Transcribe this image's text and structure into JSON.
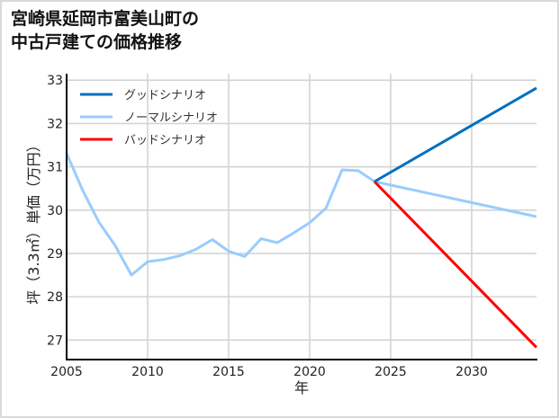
{
  "title": {
    "line1": "宮崎県延岡市富美山町の",
    "line2": "中古戸建ての価格推移"
  },
  "colors": {
    "good": "#0070c0",
    "normal": "#99ccff",
    "bad": "#ff0000",
    "grid": "#d4d4d4",
    "axis": "#000000",
    "frame": "#d9d9d9"
  },
  "chart_data": {
    "type": "line",
    "title": "宮崎県延岡市富美山町の中古戸建ての価格推移",
    "xlabel": "年",
    "ylabel": "坪（3.3㎡）単価（万円）",
    "xlim": [
      2005,
      2034
    ],
    "ylim": [
      26.55,
      33.15
    ],
    "xticks": [
      2005,
      2010,
      2015,
      2020,
      2025,
      2030
    ],
    "yticks": [
      27,
      28,
      29,
      30,
      31,
      32,
      33
    ],
    "grid": true,
    "legend_position": "upper left",
    "series": [
      {
        "name": "グッドシナリオ",
        "key": "good",
        "x": [
          2024,
          2034
        ],
        "values": [
          30.66,
          32.82
        ]
      },
      {
        "name": "ノーマルシナリオ",
        "key": "normal",
        "x": [
          2005,
          2006,
          2007,
          2008,
          2009,
          2010,
          2011,
          2012,
          2013,
          2014,
          2015,
          2016,
          2017,
          2018,
          2019,
          2020,
          2021,
          2022,
          2023,
          2024,
          2034
        ],
        "values": [
          31.31,
          30.45,
          29.72,
          29.18,
          28.5,
          28.81,
          28.86,
          28.95,
          29.1,
          29.32,
          29.05,
          28.93,
          29.34,
          29.25,
          29.47,
          29.71,
          30.04,
          30.93,
          30.91,
          30.66,
          29.85
        ]
      },
      {
        "name": "バッドシナリオ",
        "key": "bad",
        "x": [
          2024,
          2034
        ],
        "values": [
          30.66,
          26.83
        ]
      }
    ]
  }
}
